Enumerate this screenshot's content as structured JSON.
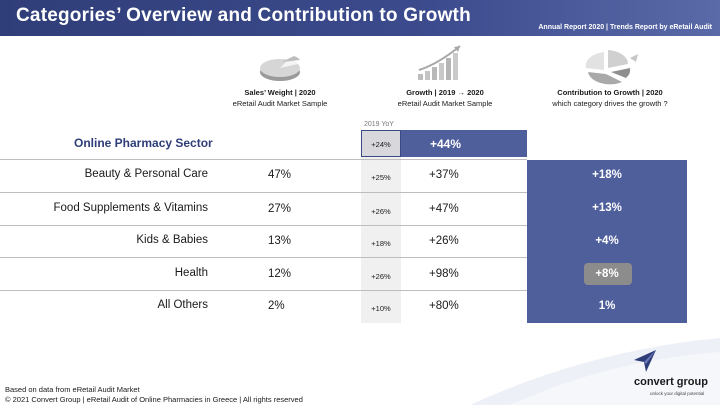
{
  "header": {
    "title": "Categories’ Overview and Contribution to Growth",
    "report": "Annual Report 2020 | Trends Report by eRetail Audit"
  },
  "columns": {
    "sales": {
      "title": "Sales’ Weight | 2020",
      "subtitle": "eRetail Audit Market Sample",
      "icon": "pie-chart-icon"
    },
    "growth": {
      "title": "Growth | 2019 → 2020",
      "subtitle": "eRetail Audit Market Sample",
      "icon": "bar-growth-icon"
    },
    "contribution": {
      "title": "Contribution to Growth | 2020",
      "subtitle": "which category drives the growth ?",
      "icon": "exploded-pie-icon"
    },
    "yoy_label": "2019 YoY"
  },
  "sector": {
    "label": "Online Pharmacy Sector",
    "yoy": "+24%",
    "growth": "+44%"
  },
  "rows": [
    {
      "category": "Beauty & Personal Care",
      "weight": "47%",
      "yoy": "+25%",
      "growth": "+37%",
      "contribution": "+18%"
    },
    {
      "category": "Food Supplements & Vitamins",
      "weight": "27%",
      "yoy": "+26%",
      "growth": "+47%",
      "contribution": "+13%"
    },
    {
      "category": "Kids & Babies",
      "weight": "13%",
      "yoy": "+18%",
      "growth": "+26%",
      "contribution": "+4%"
    },
    {
      "category": "Health",
      "weight": "12%",
      "yoy": "+26%",
      "growth": "+98%",
      "contribution": "+8%"
    },
    {
      "category": "All Others",
      "weight": "2%",
      "yoy": "+10%",
      "growth": "+80%",
      "contribution": "1%"
    }
  ],
  "footer": {
    "source": "Based on data from eRetail Audit Market",
    "copyright": "© 2021 Convert Group | eRetail Audit of Online Pharmacies in Greece | All rights reserved"
  },
  "brand": {
    "name": "convert group",
    "tagline": "unlock your digital potential",
    "logo": "paper-plane-logo"
  },
  "colors": {
    "banner": "#3c4b8d",
    "accent": "#4f5f9c",
    "highlight": "#8c8c8c"
  }
}
